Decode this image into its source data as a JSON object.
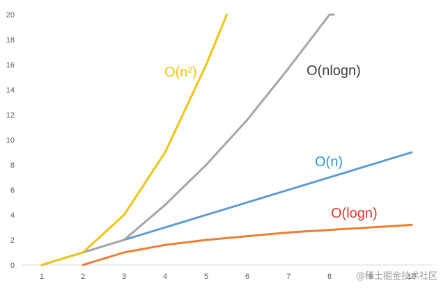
{
  "chart_data": {
    "type": "line",
    "title": "",
    "xlabel": "",
    "ylabel": "",
    "xlim": [
      1,
      10
    ],
    "ylim": [
      0,
      20
    ],
    "x_ticks": [
      1,
      2,
      3,
      4,
      5,
      6,
      7,
      8,
      9,
      10
    ],
    "y_ticks": [
      0,
      2,
      4,
      6,
      8,
      10,
      12,
      14,
      16,
      18,
      20
    ],
    "grid": false,
    "legend": "none",
    "series": [
      {
        "name": "O(n²)",
        "color": "#f2c40f",
        "x": [
          1,
          2,
          3,
          4,
          5,
          5.5
        ],
        "y": [
          0,
          1,
          4,
          9,
          16,
          20
        ]
      },
      {
        "name": "O(nlogn)",
        "color": "#a5a5a5",
        "x": [
          1,
          2,
          3,
          4,
          5,
          6,
          7,
          8,
          8.1
        ],
        "y": [
          0,
          1,
          2,
          4.8,
          8,
          11.6,
          15.7,
          20,
          20
        ]
      },
      {
        "name": "O(n)",
        "color": "#5b9bd5",
        "x": [
          1,
          2,
          3,
          4,
          5,
          6,
          7,
          8,
          9,
          10
        ],
        "y": [
          0,
          1,
          2,
          3,
          4,
          5,
          6,
          7,
          8,
          9
        ]
      },
      {
        "name": "O(logn)",
        "color": "#ed7d31",
        "x": [
          2,
          3,
          4,
          5,
          6,
          7,
          8,
          9,
          10
        ],
        "y": [
          0,
          1,
          1.6,
          2,
          2.3,
          2.6,
          2.8,
          3,
          3.2
        ]
      }
    ],
    "annotations": [
      {
        "text": "O(n²)",
        "series": 0,
        "color": "#f2c40f"
      },
      {
        "text": "O(nlogn)",
        "series": 1,
        "color": "#404040"
      },
      {
        "text": "O(n)",
        "series": 2,
        "color": "#2e96d8"
      },
      {
        "text": "O(logn)",
        "series": 3,
        "color": "#d9362b"
      }
    ]
  },
  "watermark": "@稀土掘金技术社区"
}
